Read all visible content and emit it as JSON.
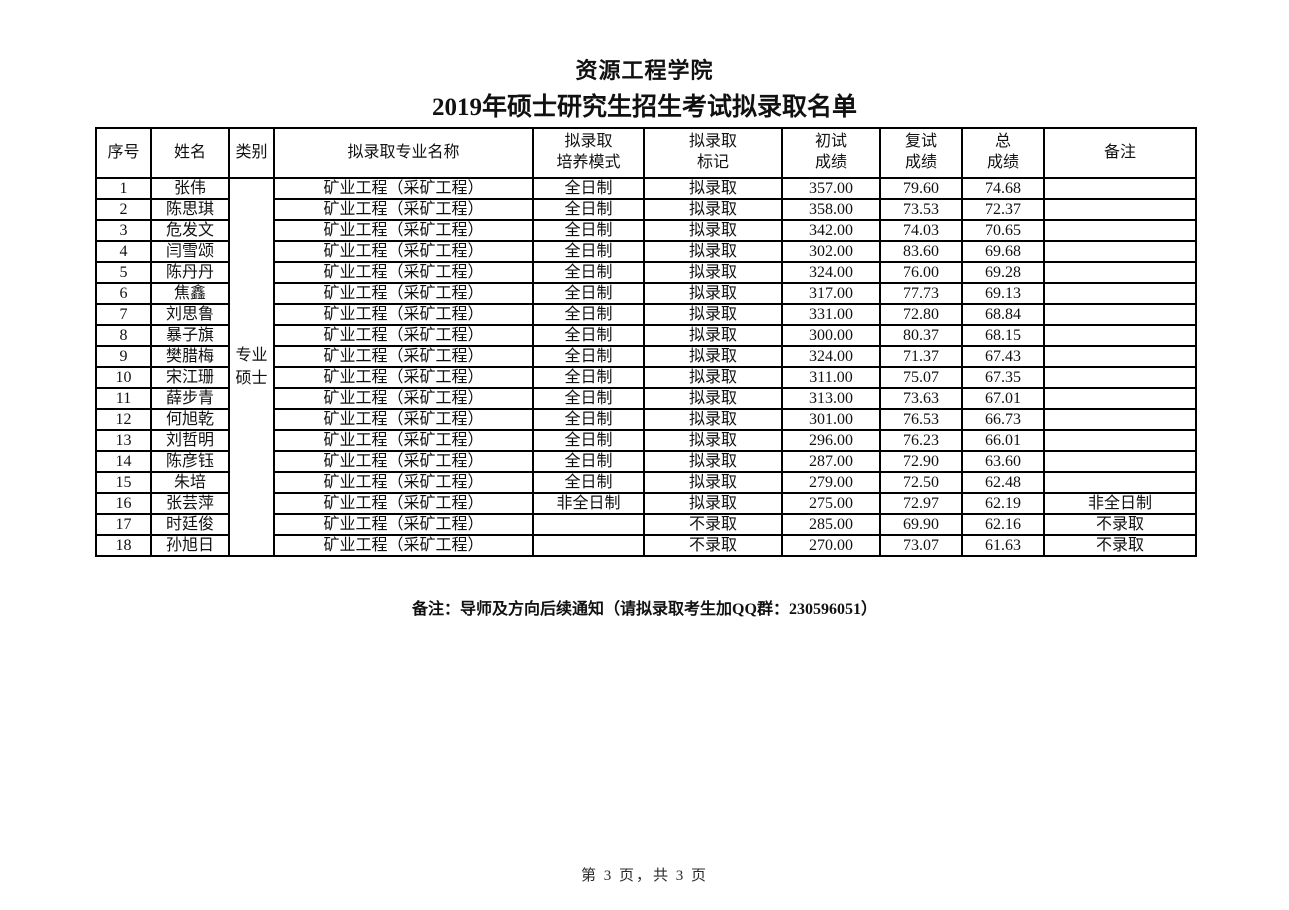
{
  "page": {
    "title_line1": "资源工程学院",
    "title_line2": "2019年硕士研究生招生考试拟录取名单",
    "footnote": "备注：导师及方向后续通知（请拟录取考生加QQ群：230596051）",
    "page_footer": "第 3 页，共 3 页"
  },
  "table": {
    "headers": [
      "序号",
      "姓名",
      "类别",
      "拟录取专业名称",
      "拟录取\n培养模式",
      "拟录取\n标记",
      "初试\n成绩",
      "复试\n成绩",
      "总\n成绩",
      "备注"
    ],
    "category": "专业\n硕士",
    "rows": [
      {
        "no": "1",
        "name": "张伟",
        "major": "矿业工程（采矿工程）",
        "mode": "全日制",
        "mark": "拟录取",
        "score_initial": "357.00",
        "score_retest": "79.60",
        "score_total": "74.68",
        "remark": ""
      },
      {
        "no": "2",
        "name": "陈思琪",
        "major": "矿业工程（采矿工程）",
        "mode": "全日制",
        "mark": "拟录取",
        "score_initial": "358.00",
        "score_retest": "73.53",
        "score_total": "72.37",
        "remark": ""
      },
      {
        "no": "3",
        "name": "危发文",
        "major": "矿业工程（采矿工程）",
        "mode": "全日制",
        "mark": "拟录取",
        "score_initial": "342.00",
        "score_retest": "74.03",
        "score_total": "70.65",
        "remark": ""
      },
      {
        "no": "4",
        "name": "闫雪颂",
        "major": "矿业工程（采矿工程）",
        "mode": "全日制",
        "mark": "拟录取",
        "score_initial": "302.00",
        "score_retest": "83.60",
        "score_total": "69.68",
        "remark": ""
      },
      {
        "no": "5",
        "name": "陈丹丹",
        "major": "矿业工程（采矿工程）",
        "mode": "全日制",
        "mark": "拟录取",
        "score_initial": "324.00",
        "score_retest": "76.00",
        "score_total": "69.28",
        "remark": ""
      },
      {
        "no": "6",
        "name": "焦鑫",
        "major": "矿业工程（采矿工程）",
        "mode": "全日制",
        "mark": "拟录取",
        "score_initial": "317.00",
        "score_retest": "77.73",
        "score_total": "69.13",
        "remark": ""
      },
      {
        "no": "7",
        "name": "刘思鲁",
        "major": "矿业工程（采矿工程）",
        "mode": "全日制",
        "mark": "拟录取",
        "score_initial": "331.00",
        "score_retest": "72.80",
        "score_total": "68.84",
        "remark": ""
      },
      {
        "no": "8",
        "name": "暴子旗",
        "major": "矿业工程（采矿工程）",
        "mode": "全日制",
        "mark": "拟录取",
        "score_initial": "300.00",
        "score_retest": "80.37",
        "score_total": "68.15",
        "remark": ""
      },
      {
        "no": "9",
        "name": "樊腊梅",
        "major": "矿业工程（采矿工程）",
        "mode": "全日制",
        "mark": "拟录取",
        "score_initial": "324.00",
        "score_retest": "71.37",
        "score_total": "67.43",
        "remark": ""
      },
      {
        "no": "10",
        "name": "宋江珊",
        "major": "矿业工程（采矿工程）",
        "mode": "全日制",
        "mark": "拟录取",
        "score_initial": "311.00",
        "score_retest": "75.07",
        "score_total": "67.35",
        "remark": ""
      },
      {
        "no": "11",
        "name": "薛步青",
        "major": "矿业工程（采矿工程）",
        "mode": "全日制",
        "mark": "拟录取",
        "score_initial": "313.00",
        "score_retest": "73.63",
        "score_total": "67.01",
        "remark": ""
      },
      {
        "no": "12",
        "name": "何旭乾",
        "major": "矿业工程（采矿工程）",
        "mode": "全日制",
        "mark": "拟录取",
        "score_initial": "301.00",
        "score_retest": "76.53",
        "score_total": "66.73",
        "remark": ""
      },
      {
        "no": "13",
        "name": "刘哲明",
        "major": "矿业工程（采矿工程）",
        "mode": "全日制",
        "mark": "拟录取",
        "score_initial": "296.00",
        "score_retest": "76.23",
        "score_total": "66.01",
        "remark": ""
      },
      {
        "no": "14",
        "name": "陈彦钰",
        "major": "矿业工程（采矿工程）",
        "mode": "全日制",
        "mark": "拟录取",
        "score_initial": "287.00",
        "score_retest": "72.90",
        "score_total": "63.60",
        "remark": ""
      },
      {
        "no": "15",
        "name": "朱培",
        "major": "矿业工程（采矿工程）",
        "mode": "全日制",
        "mark": "拟录取",
        "score_initial": "279.00",
        "score_retest": "72.50",
        "score_total": "62.48",
        "remark": ""
      },
      {
        "no": "16",
        "name": "张芸萍",
        "major": "矿业工程（采矿工程）",
        "mode": "非全日制",
        "mark": "拟录取",
        "score_initial": "275.00",
        "score_retest": "72.97",
        "score_total": "62.19",
        "remark": "非全日制"
      },
      {
        "no": "17",
        "name": "时廷俊",
        "major": "矿业工程（采矿工程）",
        "mode": "",
        "mark": "不录取",
        "score_initial": "285.00",
        "score_retest": "69.90",
        "score_total": "62.16",
        "remark": "不录取"
      },
      {
        "no": "18",
        "name": "孙旭日",
        "major": "矿业工程（采矿工程）",
        "mode": "",
        "mark": "不录取",
        "score_initial": "270.00",
        "score_retest": "73.07",
        "score_total": "61.63",
        "remark": "不录取"
      }
    ]
  }
}
